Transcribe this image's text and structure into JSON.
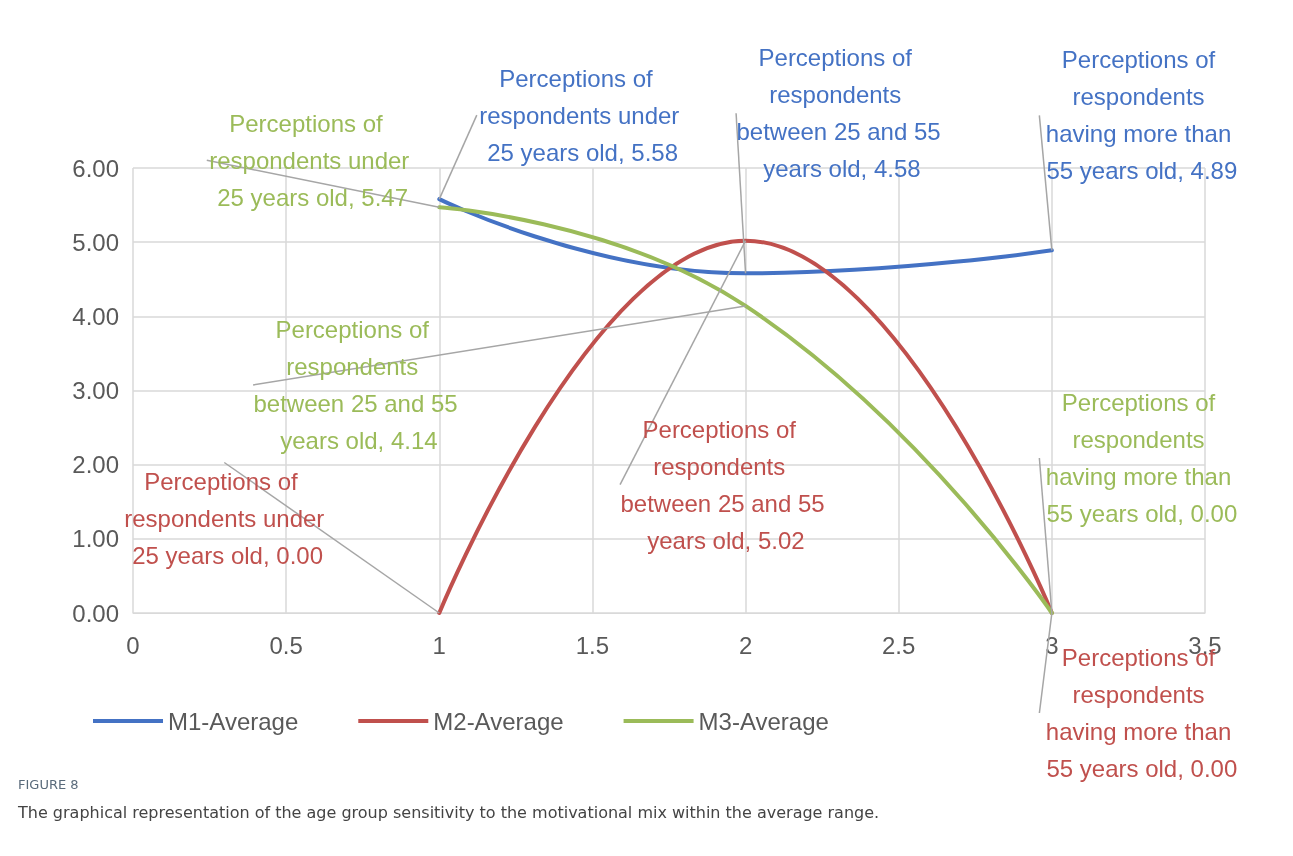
{
  "chart_data": {
    "type": "line",
    "x": [
      1,
      2,
      3
    ],
    "series": [
      {
        "name": "M1-Average",
        "color": "#4472c4",
        "values": [
          5.58,
          4.58,
          4.89
        ],
        "value_labels": [
          "Perceptions of respondents under 25 years old, 5.58",
          "Perceptions of respondents between 25 and 55 years old, 4.58",
          "Perceptions of respondents having more than 55 years old, 4.89"
        ]
      },
      {
        "name": "M2-Average",
        "color": "#c0504d",
        "values": [
          0,
          5.02,
          0
        ],
        "value_labels": [
          "Perceptions of respondents under 25 years old, 0.00",
          "Perceptions of respondents between 25 and 55 years old, 5.02",
          "Perceptions of respondents having more than 55 years old, 0.00"
        ]
      },
      {
        "name": "M3-Average",
        "color": "#9bbb59",
        "values": [
          5.47,
          4.14,
          0
        ],
        "value_labels": [
          "Perceptions of respondents under 25 years old, 5.47",
          "Perceptions of respondents between 25 and 55 years old, 4.14",
          "Perceptions of respondents having more than 55 years old, 0.00"
        ]
      }
    ],
    "xlim": [
      0,
      3.5
    ],
    "xticks": [
      0,
      0.5,
      1,
      1.5,
      2,
      2.5,
      3,
      3.5
    ],
    "ylim": [
      0,
      6
    ],
    "yticks": [
      {
        "value": 0,
        "label": "0.00"
      },
      {
        "value": 1,
        "label": "1.00"
      },
      {
        "value": 2,
        "label": "2.00"
      },
      {
        "value": 3,
        "label": "3.00"
      },
      {
        "value": 4,
        "label": "4.00"
      },
      {
        "value": 5,
        "label": "5.00"
      },
      {
        "value": 6,
        "label": "6.00"
      }
    ],
    "grid": true,
    "legend": "bottom",
    "marker": "none",
    "line_style": "solid",
    "annotations": [
      "FIGURE 8",
      "The graphical representation of the age group sensitivity to the motivational mix within the average range."
    ]
  }
}
